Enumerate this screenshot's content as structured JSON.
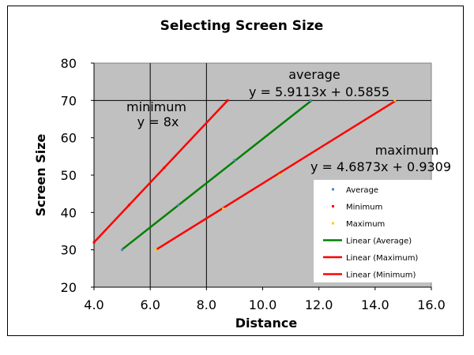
{
  "chart_data": {
    "type": "scatter",
    "title": "Selecting Screen Size",
    "xlabel": "Distance",
    "ylabel": "Screen Size",
    "xlim": [
      4.0,
      16.0
    ],
    "ylim": [
      20,
      80
    ],
    "x_ticks": [
      "4.0",
      "6.0",
      "8.0",
      "10.0",
      "12.0",
      "14.0",
      "16.0"
    ],
    "y_ticks": [
      "20",
      "30",
      "40",
      "50",
      "60",
      "70",
      "80"
    ],
    "plot_area_color": "#c0c0c0",
    "gridlines": {
      "y": [
        70
      ],
      "x": [
        6,
        8
      ]
    },
    "series": [
      {
        "name": "Average",
        "kind": "points",
        "color": "#4a86c8",
        "x": [
          5.0,
          7.0,
          9.0,
          11.7
        ],
        "y": [
          30,
          42,
          54,
          70
        ]
      },
      {
        "name": "Minimum",
        "kind": "points",
        "color": "#ff0000",
        "x": [
          4.0,
          5.25,
          6.5,
          8.75
        ],
        "y": [
          32,
          42,
          52,
          70
        ]
      },
      {
        "name": "Maximum",
        "kind": "points",
        "color": "#ffcc00",
        "x": [
          6.2,
          8.6,
          10.6,
          14.7
        ],
        "y": [
          30,
          41,
          50,
          70
        ]
      },
      {
        "name": "Linear (Average)",
        "kind": "line",
        "color": "#008000",
        "x": [
          5.0,
          11.74
        ],
        "y": [
          30.1,
          70
        ]
      },
      {
        "name": "Linear (Maximum)",
        "kind": "line",
        "color": "#ff0000",
        "x": [
          6.2,
          14.75
        ],
        "y": [
          30,
          70
        ]
      },
      {
        "name": "Linear (Minimum)",
        "kind": "line",
        "color": "#ff0000",
        "x": [
          4.0,
          8.75
        ],
        "y": [
          32,
          70
        ]
      }
    ],
    "annotations": [
      {
        "key": "average",
        "lines": [
          "average",
          "y = 5.9113x + 0.5855"
        ]
      },
      {
        "key": "minimum",
        "lines": [
          "minimum",
          "y = 8x"
        ]
      },
      {
        "key": "maximum",
        "lines": [
          "maximum",
          "y = 4.6873x + 0.9309"
        ]
      }
    ],
    "legend_position": "lower-right"
  }
}
